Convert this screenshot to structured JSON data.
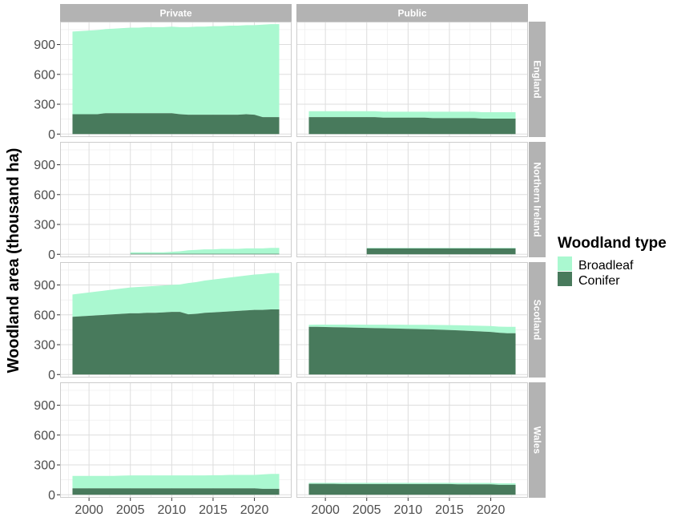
{
  "chart_data": {
    "type": "area",
    "stacked": true,
    "ylabel": "Woodland area (thousand ha)",
    "xlabel": "",
    "title": "",
    "facet_columns": [
      "Private",
      "Public"
    ],
    "facet_rows": [
      "England",
      "Northern Ireland",
      "Scotland",
      "Wales"
    ],
    "x": [
      1998,
      1999,
      2000,
      2001,
      2002,
      2003,
      2004,
      2005,
      2006,
      2007,
      2008,
      2009,
      2010,
      2011,
      2012,
      2013,
      2014,
      2015,
      2016,
      2017,
      2018,
      2019,
      2020,
      2021,
      2022,
      2023
    ],
    "xlim": [
      1996.5,
      2024.5
    ],
    "x_ticks": [
      2000,
      2005,
      2010,
      2015,
      2020
    ],
    "ylim": [
      -30,
      1130
    ],
    "y_ticks": [
      0,
      300,
      600,
      900
    ],
    "grid": true,
    "legend": {
      "title": "Woodland type",
      "position": "right",
      "entries": [
        {
          "name": "Broadleaf",
          "color": "#aaf8d0"
        },
        {
          "name": "Conifer",
          "color": "#487a5c"
        }
      ]
    },
    "colors": {
      "Broadleaf": "#aaf8d0",
      "Conifer": "#487a5c",
      "strip": "#b3b3b3",
      "panel_border": "#cccccc",
      "grid": "#dddddd"
    },
    "panels": [
      {
        "row": "England",
        "col": "Private",
        "conifer": [
          200,
          200,
          200,
          200,
          210,
          210,
          210,
          210,
          210,
          210,
          210,
          210,
          210,
          200,
          195,
          195,
          195,
          195,
          195,
          195,
          195,
          200,
          195,
          170,
          170,
          170
        ],
        "broadleaf": [
          830,
          835,
          840,
          845,
          845,
          850,
          855,
          860,
          860,
          865,
          865,
          865,
          870,
          875,
          880,
          885,
          885,
          890,
          890,
          895,
          895,
          895,
          900,
          930,
          935,
          935
        ]
      },
      {
        "row": "England",
        "col": "Public",
        "conifer": [
          170,
          170,
          170,
          170,
          170,
          170,
          170,
          170,
          170,
          165,
          165,
          165,
          165,
          165,
          165,
          160,
          160,
          160,
          160,
          160,
          160,
          155,
          155,
          155,
          155,
          155
        ],
        "broadleaf": [
          60,
          60,
          60,
          60,
          60,
          60,
          60,
          60,
          60,
          60,
          60,
          60,
          60,
          60,
          60,
          65,
          65,
          65,
          65,
          65,
          65,
          65,
          65,
          65,
          65,
          65
        ]
      },
      {
        "row": "Northern Ireland",
        "col": "Private",
        "conifer": [
          null,
          null,
          null,
          null,
          null,
          null,
          null,
          5,
          5,
          5,
          5,
          5,
          5,
          5,
          5,
          5,
          5,
          5,
          5,
          5,
          5,
          5,
          5,
          5,
          5,
          5
        ],
        "broadleaf": [
          null,
          null,
          null,
          null,
          null,
          null,
          null,
          15,
          15,
          15,
          15,
          15,
          20,
          25,
          35,
          40,
          45,
          45,
          50,
          50,
          50,
          55,
          55,
          55,
          60,
          60
        ]
      },
      {
        "row": "Northern Ireland",
        "col": "Public",
        "conifer": [
          null,
          null,
          null,
          null,
          null,
          null,
          null,
          60,
          60,
          60,
          60,
          60,
          60,
          60,
          60,
          60,
          60,
          60,
          60,
          60,
          60,
          60,
          60,
          60,
          60,
          60
        ],
        "broadleaf": [
          null,
          null,
          null,
          null,
          null,
          null,
          null,
          5,
          5,
          5,
          5,
          5,
          5,
          5,
          5,
          5,
          5,
          5,
          5,
          5,
          5,
          5,
          5,
          5,
          5,
          5
        ]
      },
      {
        "row": "Scotland",
        "col": "Private",
        "conifer": [
          580,
          585,
          590,
          595,
          600,
          605,
          610,
          615,
          615,
          620,
          620,
          625,
          630,
          630,
          605,
          610,
          620,
          625,
          630,
          635,
          640,
          645,
          650,
          650,
          655,
          655
        ],
        "broadleaf": [
          225,
          230,
          235,
          240,
          245,
          250,
          255,
          260,
          265,
          265,
          270,
          270,
          270,
          275,
          315,
          320,
          325,
          330,
          335,
          340,
          345,
          350,
          355,
          360,
          365,
          365
        ]
      },
      {
        "row": "Scotland",
        "col": "Public",
        "conifer": [
          480,
          480,
          478,
          476,
          474,
          472,
          470,
          468,
          466,
          465,
          463,
          461,
          459,
          457,
          455,
          453,
          450,
          447,
          444,
          440,
          436,
          432,
          428,
          420,
          415,
          415
        ],
        "broadleaf": [
          20,
          22,
          24,
          26,
          28,
          30,
          32,
          33,
          35,
          36,
          38,
          40,
          41,
          43,
          45,
          46,
          48,
          50,
          52,
          54,
          56,
          58,
          60,
          62,
          64,
          64
        ]
      },
      {
        "row": "Wales",
        "col": "Private",
        "conifer": [
          65,
          65,
          65,
          65,
          65,
          65,
          65,
          65,
          65,
          65,
          65,
          65,
          65,
          65,
          65,
          65,
          65,
          65,
          65,
          65,
          65,
          65,
          65,
          60,
          60,
          60
        ],
        "broadleaf": [
          125,
          125,
          125,
          125,
          125,
          125,
          128,
          130,
          130,
          130,
          130,
          130,
          130,
          130,
          130,
          130,
          130,
          132,
          132,
          135,
          135,
          135,
          135,
          145,
          150,
          150
        ]
      },
      {
        "row": "Wales",
        "col": "Public",
        "conifer": [
          110,
          110,
          110,
          110,
          108,
          108,
          108,
          108,
          108,
          108,
          108,
          108,
          108,
          108,
          108,
          108,
          108,
          108,
          105,
          105,
          105,
          105,
          105,
          100,
          100,
          100
        ],
        "broadleaf": [
          10,
          10,
          10,
          10,
          12,
          12,
          12,
          12,
          12,
          12,
          12,
          12,
          12,
          12,
          12,
          12,
          12,
          12,
          14,
          14,
          14,
          14,
          14,
          15,
          15,
          15
        ]
      }
    ]
  }
}
